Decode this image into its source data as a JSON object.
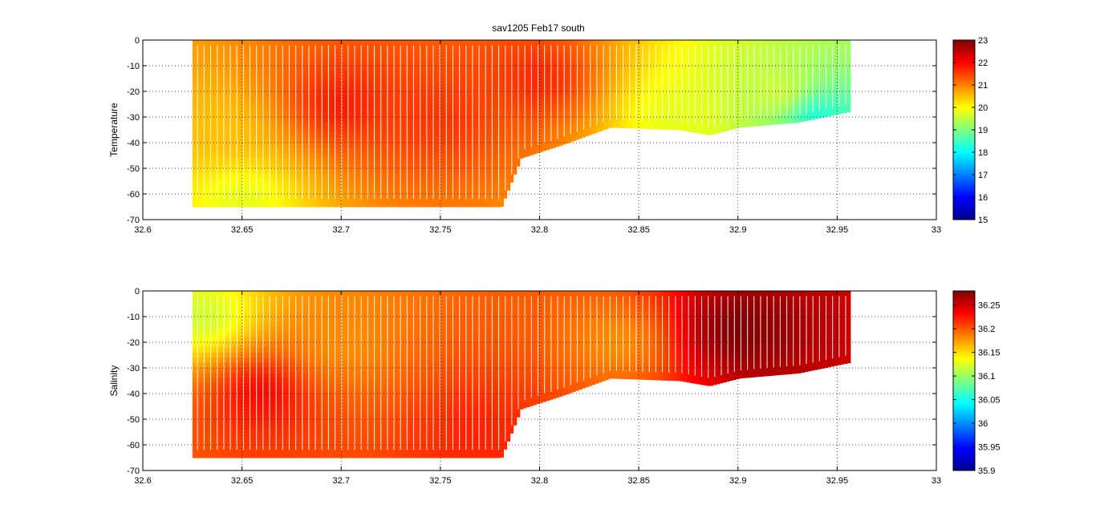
{
  "chart_data": [
    {
      "type": "heatmap",
      "title": "sav1205 Feb17 south",
      "xlabel": "",
      "ylabel": "Temperature",
      "xlim": [
        32.6,
        33
      ],
      "ylim": [
        -70,
        0
      ],
      "x_ticks": [
        "32.6",
        "32.65",
        "32.7",
        "32.75",
        "32.8",
        "32.85",
        "32.9",
        "32.95",
        "33"
      ],
      "y_ticks": [
        "0",
        "-10",
        "-20",
        "-30",
        "-40",
        "-50",
        "-60",
        "-70"
      ],
      "grid": true,
      "colormap": "jet",
      "clim": [
        15,
        23
      ],
      "colorbar_ticks": [
        "23",
        "22",
        "21",
        "20",
        "19",
        "18",
        "17",
        "16",
        "15"
      ],
      "data_extent": {
        "x": [
          32.625,
          32.955
        ]
      },
      "bottom_depth": [
        [
          32.625,
          -65
        ],
        [
          32.78,
          -65
        ],
        [
          32.79,
          -46
        ],
        [
          32.81,
          -41
        ],
        [
          32.835,
          -34
        ],
        [
          32.87,
          -35
        ],
        [
          32.885,
          -37
        ],
        [
          32.9,
          -34
        ],
        [
          32.93,
          -32
        ],
        [
          32.955,
          -28
        ]
      ],
      "field_notes": [
        {
          "x": 32.64,
          "depth": -35,
          "value": 20.5
        },
        {
          "x": 32.65,
          "depth": -62,
          "value": 19.8
        },
        {
          "x": 32.7,
          "depth": -25,
          "value": 21.8
        },
        {
          "x": 32.75,
          "depth": -30,
          "value": 21.6
        },
        {
          "x": 32.8,
          "depth": -15,
          "value": 21.7
        },
        {
          "x": 32.87,
          "depth": -30,
          "value": 19.8
        },
        {
          "x": 32.92,
          "depth": -20,
          "value": 19.6
        },
        {
          "x": 32.94,
          "depth": -30,
          "value": 18.3
        }
      ]
    },
    {
      "type": "heatmap",
      "title": "",
      "xlabel": "",
      "ylabel": "Salinity",
      "xlim": [
        32.6,
        33
      ],
      "ylim": [
        -70,
        0
      ],
      "x_ticks": [
        "32.6",
        "32.65",
        "32.7",
        "32.75",
        "32.8",
        "32.85",
        "32.9",
        "32.95",
        "33"
      ],
      "y_ticks": [
        "0",
        "-10",
        "-20",
        "-30",
        "-40",
        "-50",
        "-60",
        "-70"
      ],
      "grid": true,
      "colormap": "jet",
      "clim": [
        35.9,
        36.28
      ],
      "colorbar_ticks": [
        "36.25",
        "36.2",
        "36.15",
        "36.1",
        "36.05",
        "36",
        "35.95",
        "35.9"
      ],
      "data_extent": {
        "x": [
          32.625,
          32.955
        ]
      },
      "bottom_depth": [
        [
          32.625,
          -65
        ],
        [
          32.78,
          -65
        ],
        [
          32.79,
          -46
        ],
        [
          32.81,
          -41
        ],
        [
          32.835,
          -34
        ],
        [
          32.87,
          -35
        ],
        [
          32.885,
          -37
        ],
        [
          32.9,
          -34
        ],
        [
          32.93,
          -32
        ],
        [
          32.955,
          -28
        ]
      ],
      "field_notes": [
        {
          "x": 32.63,
          "depth": -10,
          "value": 36.12
        },
        {
          "x": 32.66,
          "depth": -40,
          "value": 36.23
        },
        {
          "x": 32.7,
          "depth": -20,
          "value": 36.18
        },
        {
          "x": 32.77,
          "depth": -55,
          "value": 36.22
        },
        {
          "x": 32.84,
          "depth": -20,
          "value": 36.18
        },
        {
          "x": 32.9,
          "depth": -15,
          "value": 36.28
        }
      ]
    }
  ]
}
